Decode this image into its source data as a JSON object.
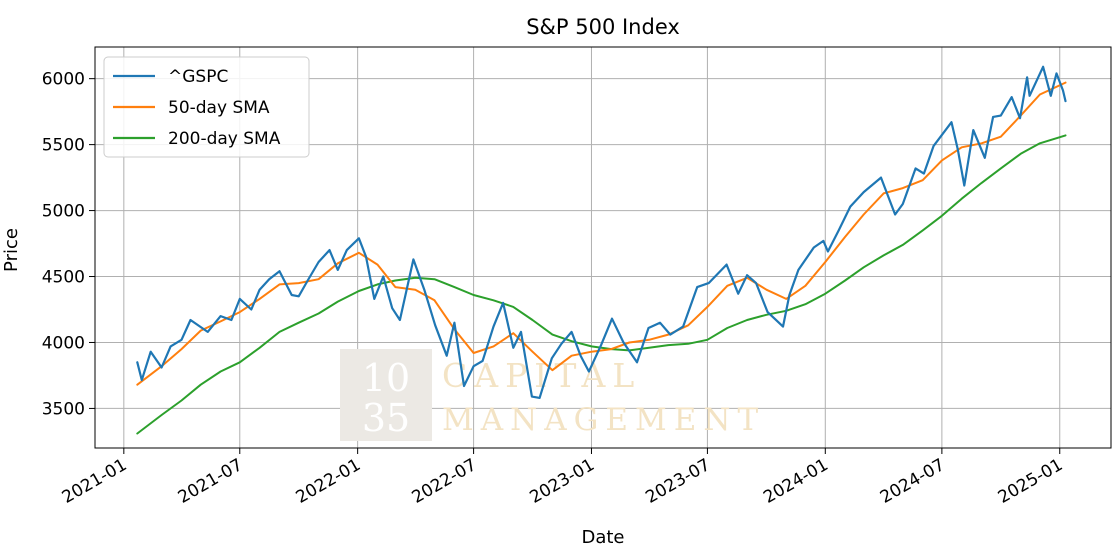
{
  "chart_data": {
    "type": "line",
    "title": "S&P 500 Index",
    "xlabel": "Date",
    "ylabel": "Price",
    "x_ticks": [
      "2021-01",
      "2021-07",
      "2022-01",
      "2022-07",
      "2023-01",
      "2023-07",
      "2024-01",
      "2024-07",
      "2025-01"
    ],
    "y_ticks": [
      3500,
      4000,
      4500,
      5000,
      5500,
      6000
    ],
    "xlim": [
      "2020-11-17",
      "2025-03-22"
    ],
    "ylim": [
      3200,
      6240
    ],
    "grid": true,
    "legend_position": "top-left",
    "series": [
      {
        "name": "^GSPC",
        "color": "#1f77b4",
        "points": [
          [
            "2021-01-22",
            3850
          ],
          [
            "2021-01-29",
            3715
          ],
          [
            "2021-02-12",
            3930
          ],
          [
            "2021-03-01",
            3810
          ],
          [
            "2021-03-15",
            3970
          ],
          [
            "2021-04-01",
            4020
          ],
          [
            "2021-04-15",
            4170
          ],
          [
            "2021-05-12",
            4080
          ],
          [
            "2021-06-01",
            4200
          ],
          [
            "2021-06-18",
            4170
          ],
          [
            "2021-07-01",
            4330
          ],
          [
            "2021-07-19",
            4250
          ],
          [
            "2021-08-01",
            4400
          ],
          [
            "2021-08-16",
            4480
          ],
          [
            "2021-09-01",
            4540
          ],
          [
            "2021-09-20",
            4360
          ],
          [
            "2021-10-01",
            4350
          ],
          [
            "2021-10-15",
            4470
          ],
          [
            "2021-11-01",
            4610
          ],
          [
            "2021-11-18",
            4700
          ],
          [
            "2021-12-01",
            4550
          ],
          [
            "2021-12-15",
            4700
          ],
          [
            "2022-01-03",
            4790
          ],
          [
            "2022-01-14",
            4650
          ],
          [
            "2022-01-27",
            4330
          ],
          [
            "2022-02-10",
            4500
          ],
          [
            "2022-02-24",
            4260
          ],
          [
            "2022-03-08",
            4170
          ],
          [
            "2022-03-29",
            4630
          ],
          [
            "2022-04-15",
            4400
          ],
          [
            "2022-05-02",
            4130
          ],
          [
            "2022-05-20",
            3900
          ],
          [
            "2022-06-01",
            4150
          ],
          [
            "2022-06-16",
            3670
          ],
          [
            "2022-07-01",
            3820
          ],
          [
            "2022-07-15",
            3860
          ],
          [
            "2022-08-01",
            4120
          ],
          [
            "2022-08-16",
            4300
          ],
          [
            "2022-09-01",
            3960
          ],
          [
            "2022-09-13",
            4080
          ],
          [
            "2022-09-30",
            3590
          ],
          [
            "2022-10-12",
            3580
          ],
          [
            "2022-10-31",
            3880
          ],
          [
            "2022-11-15",
            3990
          ],
          [
            "2022-12-01",
            4080
          ],
          [
            "2022-12-15",
            3900
          ],
          [
            "2022-12-28",
            3780
          ],
          [
            "2023-01-16",
            3980
          ],
          [
            "2023-02-02",
            4180
          ],
          [
            "2023-02-20",
            4000
          ],
          [
            "2023-03-13",
            3850
          ],
          [
            "2023-03-31",
            4110
          ],
          [
            "2023-04-18",
            4150
          ],
          [
            "2023-05-04",
            4060
          ],
          [
            "2023-05-24",
            4120
          ],
          [
            "2023-06-15",
            4420
          ],
          [
            "2023-07-03",
            4450
          ],
          [
            "2023-07-31",
            4590
          ],
          [
            "2023-08-18",
            4370
          ],
          [
            "2023-09-01",
            4510
          ],
          [
            "2023-09-15",
            4450
          ],
          [
            "2023-10-03",
            4230
          ],
          [
            "2023-10-27",
            4120
          ],
          [
            "2023-11-06",
            4360
          ],
          [
            "2023-11-20",
            4550
          ],
          [
            "2023-12-14",
            4720
          ],
          [
            "2023-12-29",
            4770
          ],
          [
            "2024-01-05",
            4690
          ],
          [
            "2024-01-22",
            4850
          ],
          [
            "2024-02-09",
            5030
          ],
          [
            "2024-03-01",
            5140
          ],
          [
            "2024-03-28",
            5250
          ],
          [
            "2024-04-19",
            4970
          ],
          [
            "2024-05-01",
            5050
          ],
          [
            "2024-05-21",
            5320
          ],
          [
            "2024-06-03",
            5280
          ],
          [
            "2024-06-18",
            5490
          ],
          [
            "2024-07-16",
            5670
          ],
          [
            "2024-07-26",
            5460
          ],
          [
            "2024-08-05",
            5190
          ],
          [
            "2024-08-19",
            5610
          ],
          [
            "2024-09-06",
            5400
          ],
          [
            "2024-09-19",
            5710
          ],
          [
            "2024-10-01",
            5720
          ],
          [
            "2024-10-18",
            5860
          ],
          [
            "2024-10-31",
            5700
          ],
          [
            "2024-11-11",
            6010
          ],
          [
            "2024-11-15",
            5870
          ],
          [
            "2024-12-06",
            6090
          ],
          [
            "2024-12-18",
            5870
          ],
          [
            "2024-12-27",
            6040
          ],
          [
            "2025-01-06",
            5910
          ],
          [
            "2025-01-10",
            5830
          ]
        ]
      },
      {
        "name": "50-day SMA",
        "color": "#ff7f0e",
        "points": [
          [
            "2021-01-22",
            3680
          ],
          [
            "2021-03-01",
            3820
          ],
          [
            "2021-04-01",
            3950
          ],
          [
            "2021-05-01",
            4090
          ],
          [
            "2021-06-01",
            4160
          ],
          [
            "2021-07-01",
            4230
          ],
          [
            "2021-08-01",
            4330
          ],
          [
            "2021-09-01",
            4440
          ],
          [
            "2021-10-01",
            4450
          ],
          [
            "2021-11-01",
            4480
          ],
          [
            "2021-12-01",
            4600
          ],
          [
            "2022-01-03",
            4680
          ],
          [
            "2022-02-01",
            4590
          ],
          [
            "2022-03-01",
            4420
          ],
          [
            "2022-04-01",
            4400
          ],
          [
            "2022-05-01",
            4320
          ],
          [
            "2022-06-01",
            4100
          ],
          [
            "2022-07-01",
            3920
          ],
          [
            "2022-08-01",
            3970
          ],
          [
            "2022-09-01",
            4070
          ],
          [
            "2022-10-01",
            3930
          ],
          [
            "2022-11-01",
            3790
          ],
          [
            "2022-12-01",
            3900
          ],
          [
            "2023-01-01",
            3930
          ],
          [
            "2023-02-01",
            3950
          ],
          [
            "2023-03-01",
            4000
          ],
          [
            "2023-04-01",
            4020
          ],
          [
            "2023-05-01",
            4060
          ],
          [
            "2023-06-01",
            4130
          ],
          [
            "2023-07-01",
            4270
          ],
          [
            "2023-08-01",
            4430
          ],
          [
            "2023-09-01",
            4490
          ],
          [
            "2023-10-01",
            4400
          ],
          [
            "2023-11-01",
            4330
          ],
          [
            "2023-12-01",
            4430
          ],
          [
            "2024-01-01",
            4610
          ],
          [
            "2024-02-01",
            4800
          ],
          [
            "2024-03-01",
            4970
          ],
          [
            "2024-04-01",
            5130
          ],
          [
            "2024-05-01",
            5170
          ],
          [
            "2024-06-01",
            5230
          ],
          [
            "2024-07-01",
            5380
          ],
          [
            "2024-08-01",
            5480
          ],
          [
            "2024-09-01",
            5510
          ],
          [
            "2024-10-01",
            5560
          ],
          [
            "2024-11-01",
            5720
          ],
          [
            "2024-12-01",
            5880
          ],
          [
            "2025-01-10",
            5970
          ]
        ]
      },
      {
        "name": "200-day SMA",
        "color": "#2ca02c",
        "points": [
          [
            "2021-01-22",
            3310
          ],
          [
            "2021-03-01",
            3450
          ],
          [
            "2021-04-01",
            3560
          ],
          [
            "2021-05-01",
            3680
          ],
          [
            "2021-06-01",
            3780
          ],
          [
            "2021-07-01",
            3850
          ],
          [
            "2021-08-01",
            3960
          ],
          [
            "2021-09-01",
            4080
          ],
          [
            "2021-10-01",
            4150
          ],
          [
            "2021-11-01",
            4220
          ],
          [
            "2021-12-01",
            4310
          ],
          [
            "2022-01-03",
            4390
          ],
          [
            "2022-02-01",
            4440
          ],
          [
            "2022-03-01",
            4470
          ],
          [
            "2022-04-01",
            4490
          ],
          [
            "2022-05-01",
            4480
          ],
          [
            "2022-06-01",
            4420
          ],
          [
            "2022-07-01",
            4360
          ],
          [
            "2022-08-01",
            4320
          ],
          [
            "2022-09-01",
            4270
          ],
          [
            "2022-10-01",
            4170
          ],
          [
            "2022-11-01",
            4060
          ],
          [
            "2022-12-01",
            4010
          ],
          [
            "2023-01-01",
            3970
          ],
          [
            "2023-02-01",
            3950
          ],
          [
            "2023-03-01",
            3940
          ],
          [
            "2023-04-01",
            3960
          ],
          [
            "2023-05-01",
            3980
          ],
          [
            "2023-06-01",
            3990
          ],
          [
            "2023-07-01",
            4020
          ],
          [
            "2023-08-01",
            4110
          ],
          [
            "2023-09-01",
            4170
          ],
          [
            "2023-10-01",
            4210
          ],
          [
            "2023-11-01",
            4240
          ],
          [
            "2023-12-01",
            4290
          ],
          [
            "2024-01-01",
            4370
          ],
          [
            "2024-02-01",
            4470
          ],
          [
            "2024-03-01",
            4570
          ],
          [
            "2024-04-01",
            4660
          ],
          [
            "2024-05-01",
            4740
          ],
          [
            "2024-06-01",
            4850
          ],
          [
            "2024-07-01",
            4960
          ],
          [
            "2024-08-01",
            5090
          ],
          [
            "2024-09-01",
            5210
          ],
          [
            "2024-10-01",
            5320
          ],
          [
            "2024-11-01",
            5430
          ],
          [
            "2024-12-01",
            5510
          ],
          [
            "2025-01-10",
            5570
          ]
        ]
      }
    ]
  },
  "watermark": {
    "box_line_1": "10",
    "box_line_2": "35",
    "line_1": "CAPITAL",
    "line_2": "MANAGEMENT"
  }
}
